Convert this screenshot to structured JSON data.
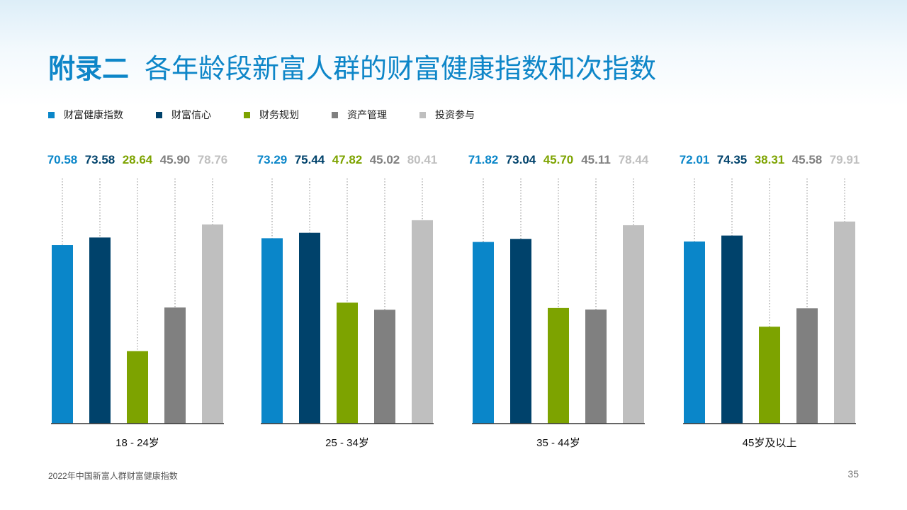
{
  "header": {
    "prefix": "附录二",
    "title": "各年龄段新富人群的财富健康指数和次指数"
  },
  "footer": {
    "source": "2022年中国新富人群财富健康指数",
    "page": "35"
  },
  "colors": {
    "title": "#0e86c8",
    "series": [
      "#0a86c9",
      "#00426b",
      "#7da300",
      "#808080",
      "#bfbfbf"
    ]
  },
  "chart_data": {
    "type": "bar",
    "title": "各年龄段新富人群的财富健康指数和次指数",
    "ylim": [
      0,
      100
    ],
    "legend": "top-left",
    "grid": false,
    "groups": [
      {
        "label": "18 - 24岁",
        "values": [
          "70.58",
          "73.58",
          "28.64",
          "45.90",
          "78.76"
        ]
      },
      {
        "label": "25 - 34岁",
        "values": [
          "73.29",
          "75.44",
          "47.82",
          "45.02",
          "80.41"
        ]
      },
      {
        "label": "35 - 44岁",
        "values": [
          "71.82",
          "73.04",
          "45.70",
          "45.11",
          "78.44"
        ]
      },
      {
        "label": "45岁及以上",
        "values": [
          "72.01",
          "74.35",
          "38.31",
          "45.58",
          "79.91"
        ]
      }
    ],
    "series": [
      {
        "name": "财富健康指数",
        "color": "#0a86c9"
      },
      {
        "name": "财富信心",
        "color": "#00426b"
      },
      {
        "name": "财务规划",
        "color": "#7da300"
      },
      {
        "name": "资产管理",
        "color": "#808080"
      },
      {
        "name": "投资参与",
        "color": "#bfbfbf"
      }
    ]
  }
}
